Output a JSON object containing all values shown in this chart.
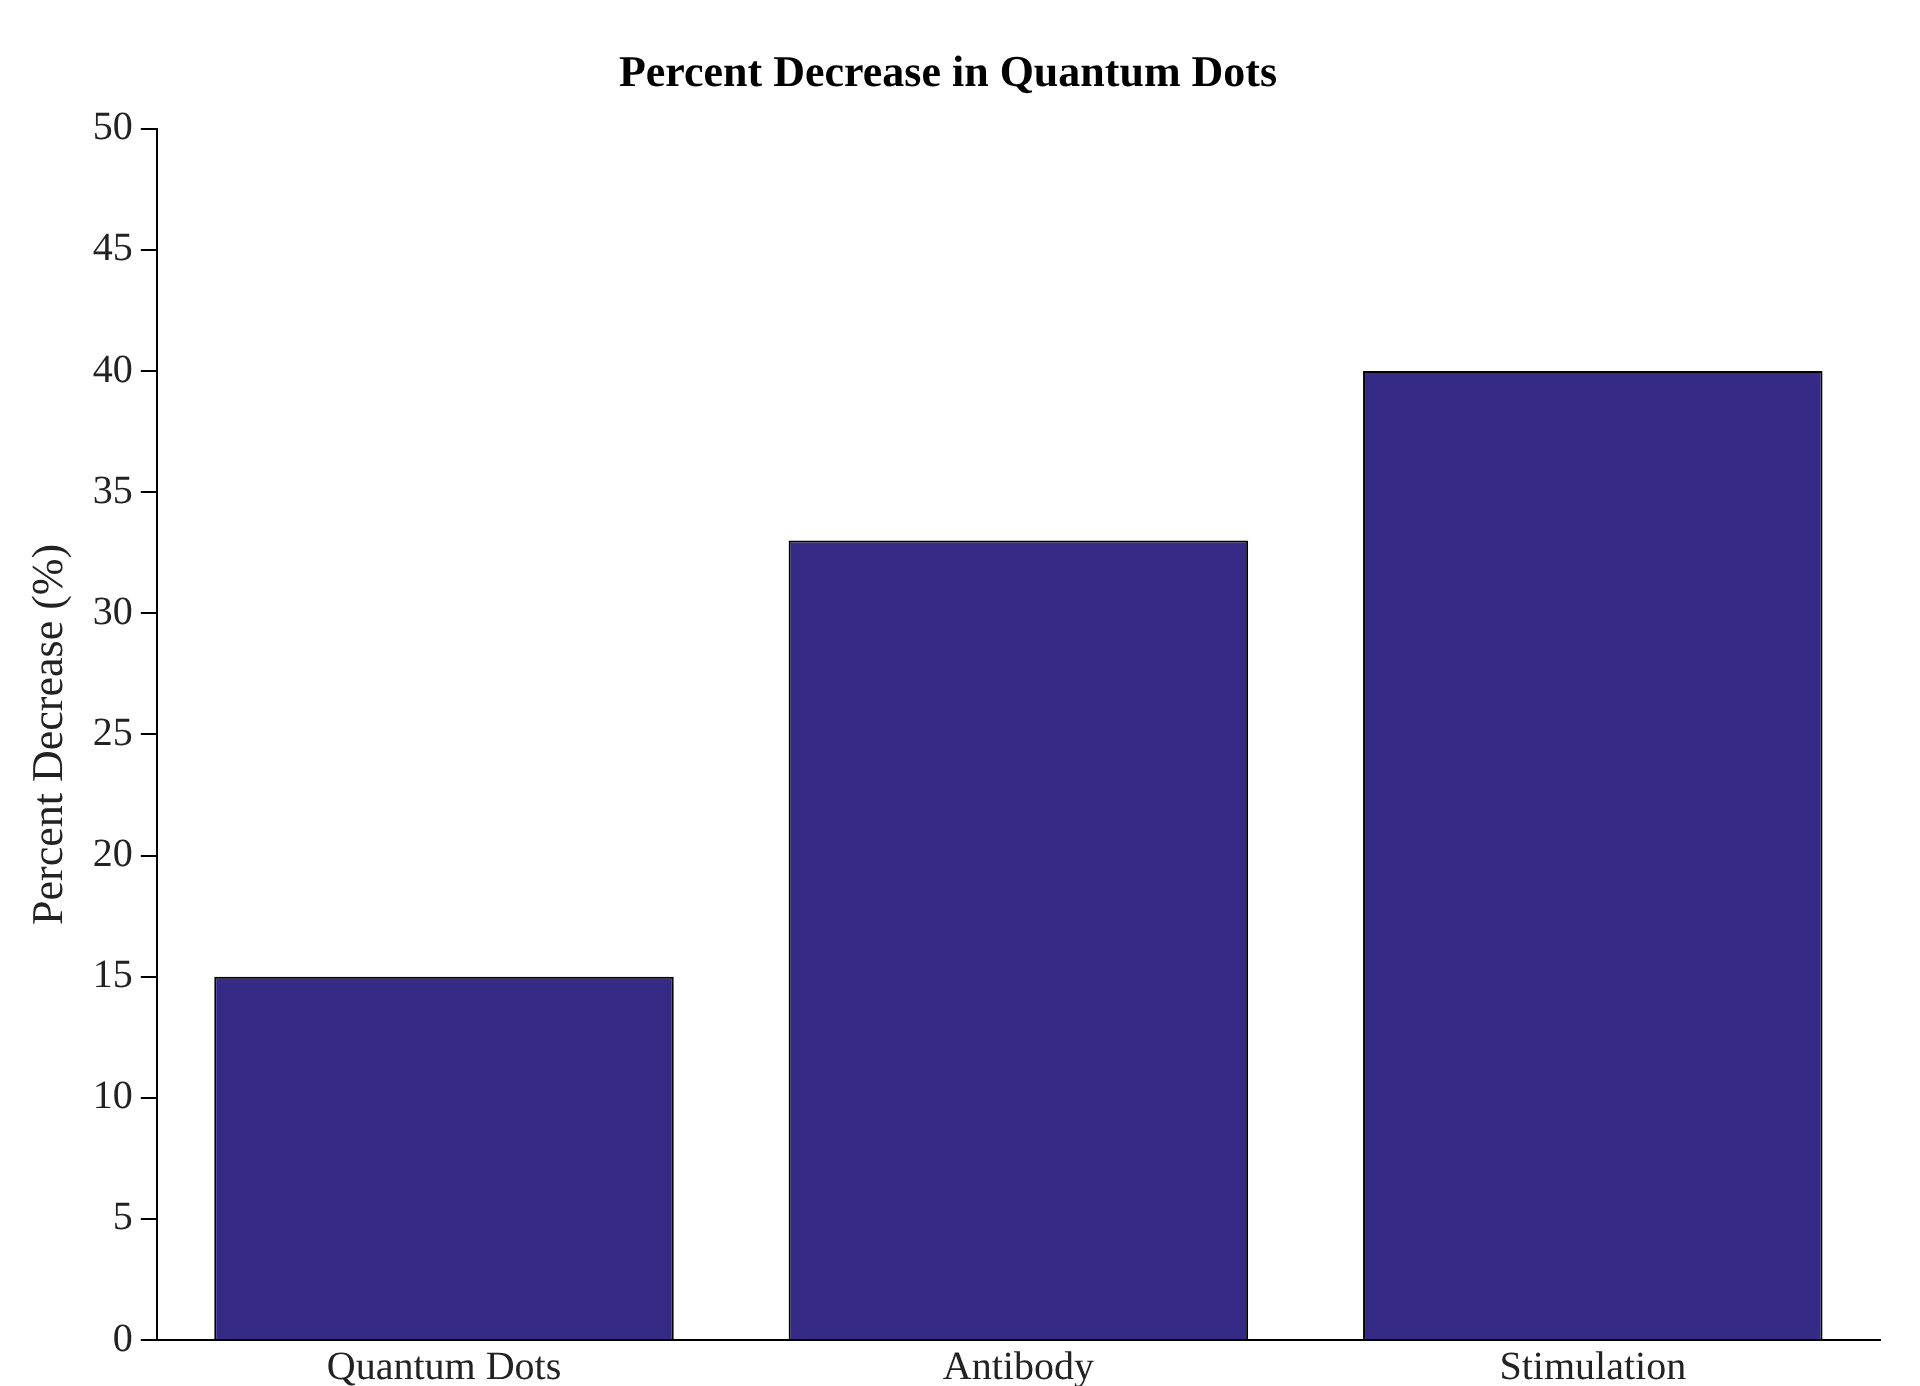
{
  "chart_data": {
    "type": "bar",
    "title": "Percent Decrease in Quantum Dots",
    "ylabel": "Percent Decrease (%)",
    "categories": [
      "Quantum Dots",
      "Antibody",
      "Stimulation"
    ],
    "values": [
      15,
      33,
      40
    ],
    "color": "#352a86",
    "ylim": [
      0,
      50
    ],
    "yticks": [
      0,
      5,
      10,
      15,
      20,
      25,
      30,
      35,
      40,
      45,
      50
    ],
    "grid": false,
    "legend": false
  }
}
